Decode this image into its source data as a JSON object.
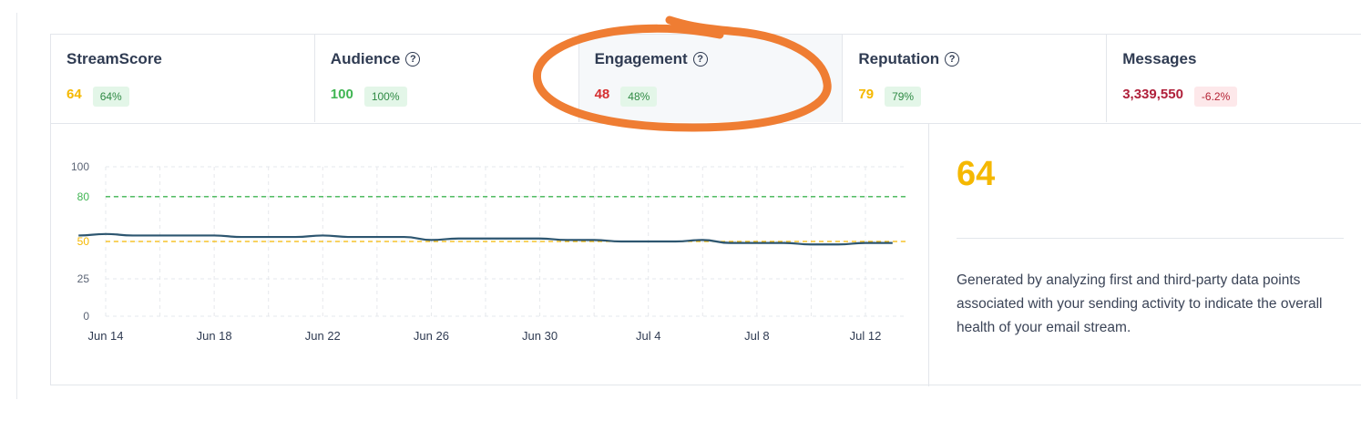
{
  "tabs": [
    {
      "title": "StreamScore",
      "help": false,
      "value": "64",
      "value_color": "#f5b800",
      "badge": "64%",
      "badge_tone": "green"
    },
    {
      "title": "Audience",
      "help": true,
      "value": "100",
      "value_color": "#3fb552",
      "badge": "100%",
      "badge_tone": "green"
    },
    {
      "title": "Engagement",
      "help": true,
      "value": "48",
      "value_color": "#d63031",
      "badge": "48%",
      "badge_tone": "green",
      "active": true
    },
    {
      "title": "Reputation",
      "help": true,
      "value": "79",
      "value_color": "#f5b800",
      "badge": "79%",
      "badge_tone": "green"
    },
    {
      "title": "Messages",
      "help": false,
      "value": "3,339,550",
      "value_color": "#b0213b",
      "badge": "-6.2%",
      "badge_tone": "red"
    }
  ],
  "help_glyph": "?",
  "help_icon": "question-circle-icon",
  "chart_data": {
    "type": "line",
    "x_ticks": [
      "Jun 14",
      "Jun 18",
      "Jun 22",
      "Jun 26",
      "Jun 30",
      "Jul 4",
      "Jul 8",
      "Jul 12"
    ],
    "y_ticks": [
      {
        "value": 0,
        "label": "0",
        "color": "#5b6475"
      },
      {
        "value": 25,
        "label": "25",
        "color": "#5b6475"
      },
      {
        "value": 50,
        "label": "50",
        "color": "#f5b800"
      },
      {
        "value": 80,
        "label": "80",
        "color": "#3fb552"
      },
      {
        "value": 100,
        "label": "100",
        "color": "#5b6475"
      }
    ],
    "ylim": [
      0,
      100
    ],
    "reference_lines": [
      {
        "value": 80,
        "color": "#3fb552"
      },
      {
        "value": 50,
        "color": "#f5b800"
      }
    ],
    "grid": true,
    "series": [
      {
        "color": "#2d5670",
        "x": [
          "Jun 13",
          "Jun 14",
          "Jun 15",
          "Jun 16",
          "Jun 17",
          "Jun 18",
          "Jun 19",
          "Jun 20",
          "Jun 21",
          "Jun 22",
          "Jun 23",
          "Jun 24",
          "Jun 25",
          "Jun 26",
          "Jun 27",
          "Jun 28",
          "Jun 29",
          "Jun 30",
          "Jul 1",
          "Jul 2",
          "Jul 3",
          "Jul 4",
          "Jul 5",
          "Jul 6",
          "Jul 7",
          "Jul 8",
          "Jul 9",
          "Jul 10",
          "Jul 11",
          "Jul 12",
          "Jul 13"
        ],
        "values": [
          54,
          55,
          54,
          54,
          54,
          54,
          53,
          53,
          53,
          54,
          53,
          53,
          53,
          51,
          52,
          52,
          52,
          52,
          51,
          51,
          50,
          50,
          50,
          51,
          49,
          49,
          49,
          48,
          48,
          49,
          49
        ]
      }
    ]
  },
  "side": {
    "score": "64",
    "score_color": "#f5b800",
    "description": "Generated by analyzing first and third-party data points associated with your sending activity to indicate the overall health of your email stream."
  },
  "annotation": {
    "color": "#ef7d33"
  }
}
